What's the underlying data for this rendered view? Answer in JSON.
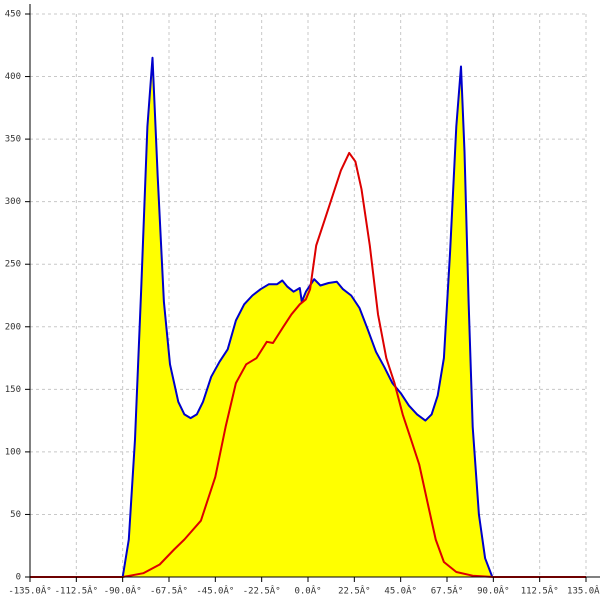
{
  "chart_data": {
    "type": "area-line",
    "xlim": [
      -135,
      135
    ],
    "ylim": [
      0,
      450
    ],
    "xticks": [
      {
        "value": -135,
        "label": "-135.0Â°"
      },
      {
        "value": -112.5,
        "label": "-112.5Â°"
      },
      {
        "value": -90,
        "label": "-90.0Â°"
      },
      {
        "value": -67.5,
        "label": "-67.5Â°"
      },
      {
        "value": -45,
        "label": "-45.0Â°"
      },
      {
        "value": -22.5,
        "label": "-22.5Â°"
      },
      {
        "value": 0,
        "label": "0.0Â°"
      },
      {
        "value": 22.5,
        "label": "22.5Â°"
      },
      {
        "value": 45,
        "label": "45.0Â°"
      },
      {
        "value": 67.5,
        "label": "67.5Â°"
      },
      {
        "value": 90,
        "label": "90.0Â°"
      },
      {
        "value": 112.5,
        "label": "112.5Â°"
      },
      {
        "value": 135,
        "label": "135.0Â°"
      }
    ],
    "yticks": [
      0,
      50,
      100,
      150,
      200,
      250,
      300,
      350,
      400,
      450
    ],
    "grid": true,
    "series": [
      {
        "color": "#0000cc",
        "fill": "#ffff00",
        "x": [
          -90,
          -87,
          -84,
          -81,
          -78,
          -75.5,
          -73,
          -70,
          -67,
          -63,
          -60,
          -57,
          -54,
          -51,
          -47,
          -43,
          -39,
          -35,
          -31,
          -27,
          -23,
          -19,
          -15,
          -12.5,
          -10,
          -7,
          -4,
          -3,
          -1,
          3,
          6,
          10,
          14,
          17,
          21,
          25,
          29,
          33,
          37,
          41,
          45,
          49,
          53,
          57,
          60,
          63,
          66,
          69,
          72,
          74.3,
          76,
          78,
          80,
          83,
          86,
          89.5
        ],
        "values": [
          0,
          30,
          110,
          230,
          360,
          415,
          320,
          220,
          170,
          140,
          130,
          127,
          130,
          140,
          160,
          172,
          182,
          205,
          218,
          225,
          230,
          234,
          234,
          237,
          232,
          228,
          231,
          220,
          228,
          238,
          233,
          235,
          236,
          230,
          225,
          215,
          198,
          180,
          168,
          155,
          147,
          137,
          130,
          125,
          130,
          145,
          175,
          260,
          360,
          408,
          340,
          220,
          120,
          50,
          15,
          0
        ]
      },
      {
        "color": "#dd0000",
        "x": [
          -135,
          -90,
          -80,
          -72,
          -65,
          -60,
          -52,
          -45,
          -40,
          -35,
          -30,
          -25,
          -20,
          -17,
          -12,
          -8,
          -4,
          -1,
          1,
          4,
          8,
          12,
          16,
          20,
          23,
          26,
          30,
          34,
          38,
          42,
          46,
          50,
          54,
          58,
          62,
          66,
          72,
          80,
          90,
          135
        ],
        "values": [
          0,
          0,
          3,
          10,
          22,
          30,
          45,
          80,
          120,
          155,
          170,
          175,
          188,
          187,
          200,
          210,
          218,
          222,
          230,
          265,
          285,
          305,
          325,
          339,
          332,
          310,
          265,
          210,
          175,
          155,
          130,
          110,
          90,
          60,
          30,
          12,
          4,
          1,
          0,
          0
        ]
      }
    ]
  }
}
